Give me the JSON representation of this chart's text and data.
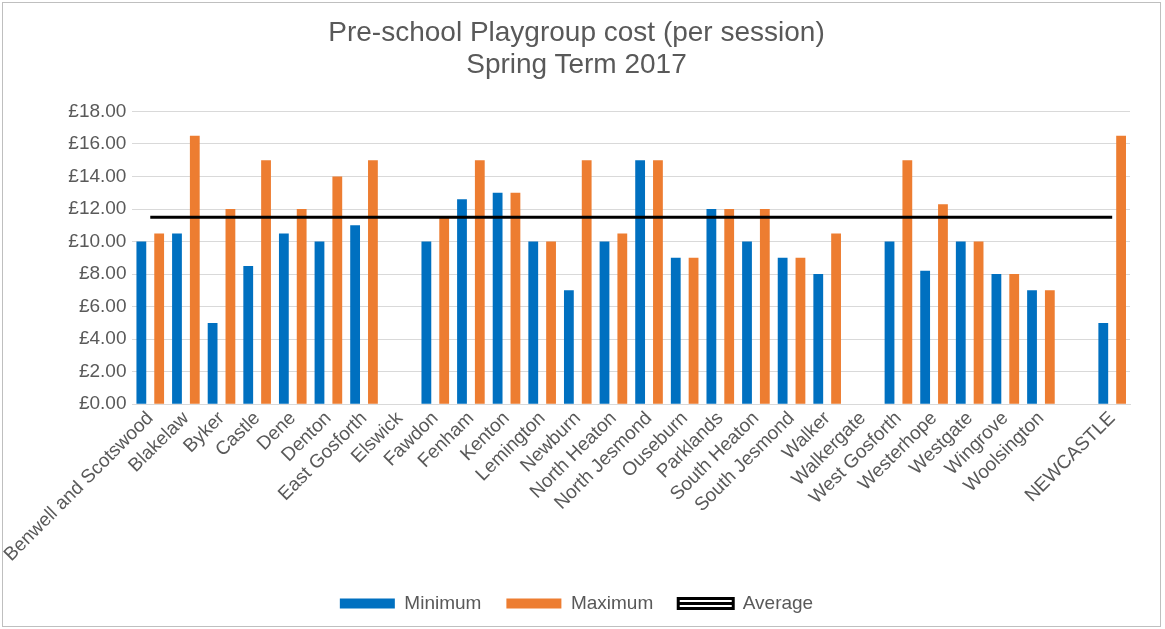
{
  "chart_data": {
    "type": "bar",
    "title": "Pre-school Playgroup cost (per session)",
    "subtitle": "Spring Term 2017",
    "categories": [
      "Benwell and Scotswood",
      "Blakelaw",
      "Byker",
      "Castle",
      "Dene",
      "Denton",
      "East Gosforth",
      "Elswick",
      "Fawdon",
      "Fenham",
      "Kenton",
      "Lemington",
      "Newburn",
      "North Heaton",
      "North Jesmond",
      "Ouseburn",
      "Parklands",
      "South Heaton",
      "South Jesmond",
      "Walker",
      "Walkergate",
      "West Gosforth",
      "Westerhope",
      "Westgate",
      "Wingrove",
      "Woolsington",
      null,
      "NEWCASTLE"
    ],
    "series": [
      {
        "name": "Minimum",
        "color": "#0070c0",
        "values": [
          10,
          10.5,
          5,
          8.5,
          10.5,
          10,
          11,
          null,
          10,
          12.6,
          13,
          10,
          7,
          10,
          15,
          9,
          12,
          10,
          9,
          8,
          null,
          10,
          8.2,
          10,
          8,
          7,
          null,
          5
        ]
      },
      {
        "name": "Maximum",
        "color": "#ed7d31",
        "values": [
          10.5,
          16.5,
          12,
          15,
          12,
          14,
          15,
          null,
          11.5,
          15,
          13,
          10,
          15,
          10.5,
          15,
          9,
          12,
          12,
          9,
          10.5,
          null,
          15,
          12.3,
          10,
          8,
          7,
          null,
          16.5
        ]
      },
      {
        "name": "Average",
        "type": "line",
        "color": "#000000",
        "values": [
          11.5,
          11.5,
          11.5,
          11.5,
          11.5,
          11.5,
          11.5,
          11.5,
          11.5,
          11.5,
          11.5,
          11.5,
          11.5,
          11.5,
          11.5,
          11.5,
          11.5,
          11.5,
          11.5,
          11.5,
          11.5,
          11.5,
          11.5,
          11.5,
          11.5,
          11.5,
          11.5,
          11.5
        ]
      }
    ],
    "ylim": [
      0,
      18
    ],
    "yticks": [
      {
        "value": 0,
        "label": "£0.00"
      },
      {
        "value": 2,
        "label": "£2.00"
      },
      {
        "value": 4,
        "label": "£4.00"
      },
      {
        "value": 6,
        "label": "£6.00"
      },
      {
        "value": 8,
        "label": "£8.00"
      },
      {
        "value": 10,
        "label": "£10.00"
      },
      {
        "value": 12,
        "label": "£12.00"
      },
      {
        "value": 14,
        "label": "£14.00"
      },
      {
        "value": 16,
        "label": "£16.00"
      },
      {
        "value": 18,
        "label": "£18.00"
      }
    ],
    "grid": "y",
    "legend": "bottom",
    "marker": "none"
  }
}
